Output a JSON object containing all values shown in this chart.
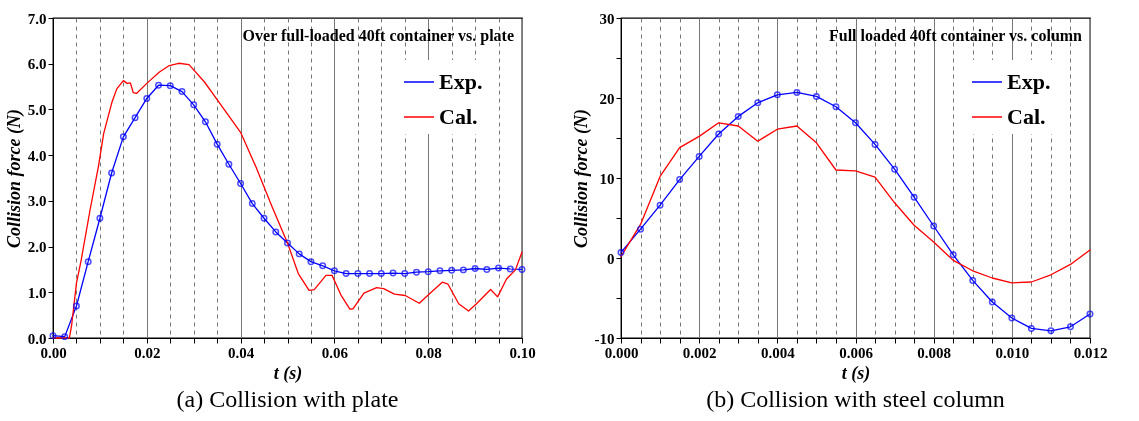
{
  "chart_data": [
    {
      "type": "line",
      "title": "Over full-loaded 40ft container vs. plate",
      "xlabel": "t (s)",
      "ylabel": "Collision force (N)",
      "annotations": [
        "(a) Collision with plate"
      ],
      "xlim": [
        0,
        0.1
      ],
      "ylim": [
        0,
        7
      ],
      "xticks": [
        {
          "value": 0,
          "label": "0.00"
        },
        {
          "value": 0.005,
          "label": null
        },
        {
          "value": 0.01,
          "label": null
        },
        {
          "value": 0.015,
          "label": null
        },
        {
          "value": 0.02,
          "label": "0.02"
        },
        {
          "value": 0.025,
          "label": null
        },
        {
          "value": 0.03,
          "label": null
        },
        {
          "value": 0.035,
          "label": null
        },
        {
          "value": 0.04,
          "label": "0.04"
        },
        {
          "value": 0.045,
          "label": null
        },
        {
          "value": 0.05,
          "label": null
        },
        {
          "value": 0.055,
          "label": null
        },
        {
          "value": 0.06,
          "label": "0.06"
        },
        {
          "value": 0.065,
          "label": null
        },
        {
          "value": 0.07,
          "label": null
        },
        {
          "value": 0.075,
          "label": null
        },
        {
          "value": 0.08,
          "label": "0.08"
        },
        {
          "value": 0.085,
          "label": null
        },
        {
          "value": 0.09,
          "label": null
        },
        {
          "value": 0.095,
          "label": null
        },
        {
          "value": 0.1,
          "label": "0.10"
        }
      ],
      "yticks": [
        {
          "value": 0,
          "label": "0.0"
        },
        {
          "value": 1,
          "label": "1.0"
        },
        {
          "value": 2,
          "label": "2.0"
        },
        {
          "value": 3,
          "label": "3.0"
        },
        {
          "value": 4,
          "label": "4.0"
        },
        {
          "value": 5,
          "label": "5.0"
        },
        {
          "value": 6,
          "label": "6.0"
        },
        {
          "value": 7,
          "label": "7.0"
        }
      ],
      "grid": "x",
      "legend": "top right",
      "series": [
        {
          "name": "Exp.",
          "color": "#0000ff",
          "marker": "circle",
          "x": [
            0,
            0.0025,
            0.005,
            0.0075,
            0.01,
            0.0125,
            0.015,
            0.0175,
            0.02,
            0.0225,
            0.025,
            0.0275,
            0.03,
            0.0325,
            0.035,
            0.0375,
            0.04,
            0.0425,
            0.045,
            0.0475,
            0.05,
            0.0525,
            0.055,
            0.0575,
            0.06,
            0.0625,
            0.065,
            0.0675,
            0.07,
            0.0725,
            0.075,
            0.0775,
            0.08,
            0.0825,
            0.085,
            0.0875,
            0.09,
            0.0925,
            0.095,
            0.0975,
            0.1
          ],
          "values": [
            0.05,
            0.03,
            0.7,
            1.67,
            2.62,
            3.61,
            4.4,
            4.82,
            5.24,
            5.53,
            5.52,
            5.39,
            5.1,
            4.73,
            4.24,
            3.8,
            3.38,
            2.94,
            2.62,
            2.32,
            2.08,
            1.84,
            1.67,
            1.58,
            1.47,
            1.41,
            1.41,
            1.41,
            1.41,
            1.42,
            1.41,
            1.44,
            1.45,
            1.47,
            1.48,
            1.49,
            1.52,
            1.5,
            1.53,
            1.51,
            1.5
          ]
        },
        {
          "name": "Cal.",
          "color": "#ff0000",
          "marker": "none",
          "x": [
            0,
            0.0035,
            0.004,
            0.005,
            0.006,
            0.0079,
            0.0097,
            0.0108,
            0.0126,
            0.0136,
            0.015,
            0.0158,
            0.0165,
            0.0171,
            0.0178,
            0.02,
            0.0227,
            0.0248,
            0.0268,
            0.029,
            0.0323,
            0.0353,
            0.04,
            0.0432,
            0.0466,
            0.05,
            0.0523,
            0.0546,
            0.0557,
            0.0582,
            0.0595,
            0.0614,
            0.0633,
            0.064,
            0.0663,
            0.069,
            0.0705,
            0.0728,
            0.0751,
            0.0781,
            0.0804,
            0.083,
            0.0842,
            0.0865,
            0.0886,
            0.0903,
            0.0933,
            0.0948,
            0.0967,
            0.0986,
            0.1
          ],
          "values": [
            0,
            0,
            0.3,
            1.2,
            1.7,
            2.8,
            3.76,
            4.47,
            5.17,
            5.45,
            5.63,
            5.57,
            5.58,
            5.37,
            5.35,
            5.57,
            5.82,
            5.96,
            6.01,
            5.98,
            5.6,
            5.17,
            4.5,
            3.76,
            2.9,
            2.08,
            1.41,
            1.04,
            1.06,
            1.37,
            1.37,
            0.94,
            0.63,
            0.64,
            0.98,
            1.1,
            1.08,
            0.96,
            0.93,
            0.76,
            0.98,
            1.22,
            1.18,
            0.75,
            0.59,
            0.75,
            1.06,
            0.9,
            1.29,
            1.49,
            1.88
          ]
        }
      ]
    },
    {
      "type": "line",
      "title": "Full loaded 40ft container vs. column",
      "xlabel": "t (s)",
      "ylabel": "Collision force (N)",
      "annotations": [
        "(b) Collision with steel column"
      ],
      "xlim": [
        0,
        0.012
      ],
      "ylim": [
        -10,
        30
      ],
      "xticks": [
        {
          "value": 0,
          "label": "0.000"
        },
        {
          "value": 0.0005,
          "label": null
        },
        {
          "value": 0.001,
          "label": null
        },
        {
          "value": 0.0015,
          "label": null
        },
        {
          "value": 0.002,
          "label": "0.002"
        },
        {
          "value": 0.0025,
          "label": null
        },
        {
          "value": 0.003,
          "label": null
        },
        {
          "value": 0.0035,
          "label": null
        },
        {
          "value": 0.004,
          "label": "0.004"
        },
        {
          "value": 0.0045,
          "label": null
        },
        {
          "value": 0.005,
          "label": null
        },
        {
          "value": 0.0055,
          "label": null
        },
        {
          "value": 0.006,
          "label": "0.006"
        },
        {
          "value": 0.0065,
          "label": null
        },
        {
          "value": 0.007,
          "label": null
        },
        {
          "value": 0.0075,
          "label": null
        },
        {
          "value": 0.008,
          "label": "0.008"
        },
        {
          "value": 0.0085,
          "label": null
        },
        {
          "value": 0.009,
          "label": null
        },
        {
          "value": 0.0095,
          "label": null
        },
        {
          "value": 0.01,
          "label": "0.010"
        },
        {
          "value": 0.0105,
          "label": null
        },
        {
          "value": 0.011,
          "label": null
        },
        {
          "value": 0.0115,
          "label": null
        },
        {
          "value": 0.012,
          "label": "0.012"
        }
      ],
      "yticks": [
        -10,
        {
          "value": -5,
          "label": null
        },
        0,
        {
          "value": 5,
          "label": null
        },
        10,
        {
          "value": 15,
          "label": null
        },
        20,
        {
          "value": 25,
          "label": null
        },
        30
      ],
      "grid": "x",
      "legend": "top right",
      "series": [
        {
          "name": "Exp.",
          "color": "#0000ff",
          "marker": "circle",
          "x": [
            0,
            0.0005,
            0.001,
            0.0015,
            0.002,
            0.0025,
            0.003,
            0.0035,
            0.004,
            0.0045,
            0.005,
            0.0055,
            0.006,
            0.0065,
            0.007,
            0.0075,
            0.008,
            0.0085,
            0.009,
            0.0095,
            0.01,
            0.0105,
            0.011,
            0.0115,
            0.012
          ],
          "values": [
            0.7,
            3.6,
            6.6,
            9.8,
            12.7,
            15.5,
            17.7,
            19.4,
            20.4,
            20.7,
            20.2,
            18.9,
            16.9,
            14.2,
            11.1,
            7.6,
            4,
            0.4,
            -2.8,
            -5.5,
            -7.5,
            -8.8,
            -9.1,
            -8.6,
            -7
          ]
        },
        {
          "name": "Cal.",
          "color": "#ff0000",
          "marker": "none",
          "x": [
            0,
            0.0005,
            0.001,
            0.0015,
            0.002,
            0.0025,
            0.003,
            0.0035,
            0.004,
            0.0045,
            0.005,
            0.0055,
            0.006,
            0.0065,
            0.007,
            0.0075,
            0.008,
            0.0085,
            0.009,
            0.0095,
            0.01,
            0.0105,
            0.011,
            0.0115,
            0.012
          ],
          "values": [
            0.2,
            4.2,
            10.2,
            13.8,
            15.2,
            16.9,
            16.5,
            14.6,
            16.1,
            16.5,
            14.4,
            11,
            10.9,
            10.1,
            6.9,
            4.1,
            2,
            -0.3,
            -1.6,
            -2.5,
            -3.1,
            -3,
            -2.1,
            -0.8,
            1
          ]
        }
      ]
    }
  ]
}
